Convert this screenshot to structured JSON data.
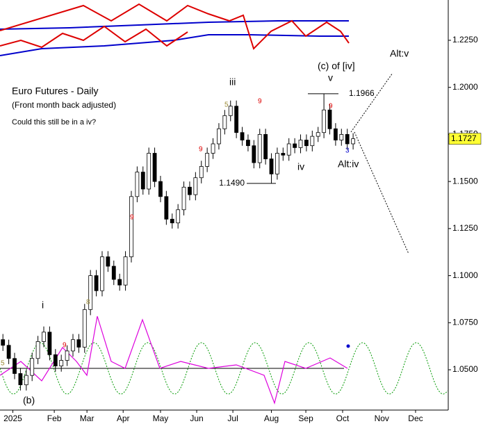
{
  "chart_data": {
    "type": "candlestick",
    "annotations": [
      "Euro Futures - Daily",
      "(Front month back adjusted)",
      "Could this still be in a iv?",
      "(c) of [iv]",
      "v",
      "iii",
      "iv",
      "Alt:iv",
      "Alt:v",
      "i",
      "(b)",
      "3",
      "9",
      "9",
      "9",
      "9",
      "9",
      "5",
      "5",
      "8"
    ],
    "open": [
      1.066,
      1.063,
      1.056,
      1.048,
      1.042,
      1.047,
      1.056,
      1.065,
      1.07,
      1.058,
      1.052,
      1.055,
      1.06,
      1.066,
      1.062,
      1.082,
      1.1,
      1.092,
      1.11,
      1.105,
      1.098,
      1.095,
      1.11,
      1.142,
      1.155,
      1.146,
      1.165,
      1.15,
      1.142,
      1.13,
      1.128,
      1.135,
      1.147,
      1.143,
      1.152,
      1.158,
      1.165,
      1.17,
      1.178,
      1.185,
      1.19,
      1.176,
      1.172,
      1.169,
      1.16,
      1.175,
      1.162,
      1.154,
      1.165,
      1.164,
      1.17,
      1.168,
      1.172,
      1.169,
      1.174,
      1.176,
      1.188,
      1.178,
      1.172,
      1.175,
      1.17
    ],
    "high": [
      1.069,
      1.066,
      1.059,
      1.051,
      1.05,
      1.059,
      1.068,
      1.073,
      1.073,
      1.061,
      1.058,
      1.063,
      1.069,
      1.069,
      1.085,
      1.103,
      1.103,
      1.113,
      1.113,
      1.108,
      1.101,
      1.113,
      1.145,
      1.158,
      1.158,
      1.168,
      1.168,
      1.153,
      1.145,
      1.133,
      1.138,
      1.15,
      1.15,
      1.155,
      1.161,
      1.168,
      1.173,
      1.181,
      1.188,
      1.193,
      1.193,
      1.179,
      1.175,
      1.172,
      1.178,
      1.178,
      1.165,
      1.168,
      1.168,
      1.173,
      1.173,
      1.175,
      1.175,
      1.177,
      1.179,
      1.1966,
      1.191,
      1.181,
      1.178,
      1.178,
      1.1757
    ],
    "low": [
      1.06,
      1.053,
      1.045,
      1.039,
      1.039,
      1.044,
      1.053,
      1.062,
      1.055,
      1.049,
      1.049,
      1.052,
      1.057,
      1.059,
      1.059,
      1.079,
      1.089,
      1.089,
      1.102,
      1.095,
      1.092,
      1.092,
      1.107,
      1.139,
      1.143,
      1.143,
      1.147,
      1.139,
      1.127,
      1.125,
      1.125,
      1.132,
      1.14,
      1.14,
      1.149,
      1.155,
      1.162,
      1.167,
      1.175,
      1.182,
      1.173,
      1.169,
      1.166,
      1.157,
      1.157,
      1.159,
      1.149,
      1.151,
      1.161,
      1.161,
      1.165,
      1.165,
      1.166,
      1.166,
      1.171,
      1.173,
      1.175,
      1.169,
      1.169,
      1.167,
      1.167
    ],
    "close": [
      1.063,
      1.056,
      1.048,
      1.042,
      1.047,
      1.056,
      1.065,
      1.07,
      1.058,
      1.052,
      1.055,
      1.06,
      1.066,
      1.062,
      1.082,
      1.1,
      1.092,
      1.11,
      1.105,
      1.098,
      1.095,
      1.11,
      1.142,
      1.155,
      1.146,
      1.165,
      1.15,
      1.142,
      1.13,
      1.128,
      1.135,
      1.147,
      1.143,
      1.152,
      1.158,
      1.165,
      1.17,
      1.178,
      1.185,
      1.19,
      1.176,
      1.172,
      1.169,
      1.16,
      1.175,
      1.162,
      1.154,
      1.165,
      1.164,
      1.17,
      1.168,
      1.172,
      1.169,
      1.174,
      1.176,
      1.188,
      1.178,
      1.172,
      1.175,
      1.17,
      1.1727
    ],
    "levels": [
      {
        "value": 1.1966,
        "label": "1.1966"
      },
      {
        "value": 1.149,
        "label": "1.1490"
      }
    ],
    "xlim": [
      -0.5,
      76.3
    ],
    "xticks": [
      {
        "value": 1.7,
        "label": "2025"
      },
      {
        "value": 8.8,
        "label": "Feb"
      },
      {
        "value": 14.4,
        "label": "Mar"
      },
      {
        "value": 20.6,
        "label": "Apr"
      },
      {
        "value": 27,
        "label": "May"
      },
      {
        "value": 33.2,
        "label": "Jun"
      },
      {
        "value": 39.4,
        "label": "Jul"
      },
      {
        "value": 46,
        "label": "Aug"
      },
      {
        "value": 51.9,
        "label": "Sep"
      },
      {
        "value": 58.2,
        "label": "Oct"
      },
      {
        "value": 64.9,
        "label": "Nov"
      },
      {
        "value": 70.7,
        "label": "Dec"
      }
    ],
    "ylim": [
      1.0286,
      1.2464
    ],
    "yticks": [
      {
        "value": 1.05,
        "label": "1.0500"
      },
      {
        "value": 1.075,
        "label": "1.0750"
      },
      {
        "value": 1.1,
        "label": "1.1000"
      },
      {
        "value": 1.125,
        "label": "1.1250"
      },
      {
        "value": 1.15,
        "label": "1.1500"
      },
      {
        "value": 1.175,
        "label": "1.1750"
      },
      {
        "value": 1.2,
        "label": "1.2000"
      },
      {
        "value": 1.225,
        "label": "1.2250"
      }
    ],
    "up_color": "#ffffff",
    "down_color": "#000000",
    "last_price_color": "#ffff33"
  }
}
